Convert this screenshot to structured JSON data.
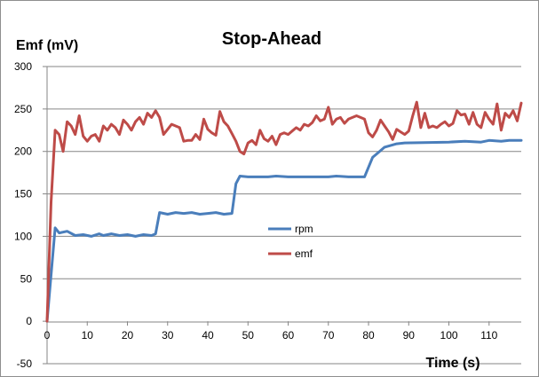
{
  "chart_data": {
    "type": "line",
    "title": "Stop-Ahead",
    "xlabel": "Time (s)",
    "ylabel": "Emf (mV)",
    "xlim": [
      0,
      118
    ],
    "ylim": [
      -50,
      300
    ],
    "x_ticks": [
      0,
      10,
      20,
      30,
      40,
      50,
      60,
      70,
      80,
      90,
      100,
      110
    ],
    "y_ticks": [
      -50,
      0,
      50,
      100,
      150,
      200,
      250,
      300
    ],
    "grid": "horizontal",
    "legend_position": "center",
    "series": [
      {
        "name": "rpm",
        "color": "#4a7ebb",
        "x": [
          0,
          2,
          3,
          5,
          7,
          9,
          11,
          13,
          14,
          16,
          18,
          20,
          22,
          24,
          26,
          27,
          28,
          30,
          32,
          34,
          36,
          38,
          40,
          42,
          44,
          46,
          47,
          48,
          50,
          55,
          57,
          60,
          70,
          72,
          75,
          79,
          81,
          82,
          84,
          87,
          89,
          100,
          104,
          108,
          110,
          113,
          115,
          118
        ],
        "values": [
          0,
          110,
          104,
          106,
          101,
          102,
          100,
          103,
          101,
          103,
          101,
          102,
          100,
          102,
          101,
          103,
          128,
          126,
          128,
          127,
          128,
          126,
          127,
          128,
          126,
          127,
          162,
          171,
          170,
          170,
          171,
          170,
          170,
          171,
          170,
          170,
          193,
          197,
          205,
          209,
          210,
          211,
          212,
          211,
          213,
          212,
          213,
          213
        ]
      },
      {
        "name": "emf",
        "color": "#be4b48",
        "x": [
          0,
          1,
          2,
          3,
          4,
          5,
          6,
          7,
          8,
          9,
          10,
          11,
          12,
          13,
          14,
          15,
          16,
          17,
          18,
          19,
          20,
          21,
          22,
          23,
          24,
          25,
          26,
          27,
          28,
          29,
          30,
          31,
          32,
          33,
          34,
          35,
          36,
          37,
          38,
          39,
          40,
          41,
          42,
          43,
          44,
          45,
          46,
          47,
          48,
          49,
          50,
          51,
          52,
          53,
          54,
          55,
          56,
          57,
          58,
          59,
          60,
          61,
          62,
          63,
          64,
          65,
          66,
          67,
          68,
          69,
          70,
          71,
          72,
          73,
          74,
          75,
          76,
          77,
          78,
          79,
          80,
          81,
          82,
          83,
          84,
          85,
          86,
          87,
          88,
          89,
          90,
          91,
          92,
          93,
          94,
          95,
          96,
          97,
          98,
          99,
          100,
          101,
          102,
          103,
          104,
          105,
          106,
          107,
          108,
          109,
          110,
          111,
          112,
          113,
          114,
          115,
          116,
          117,
          118
        ],
        "values": [
          0,
          140,
          225,
          220,
          200,
          235,
          230,
          220,
          242,
          218,
          212,
          218,
          220,
          212,
          230,
          225,
          232,
          228,
          220,
          237,
          232,
          225,
          235,
          240,
          232,
          245,
          240,
          248,
          240,
          220,
          226,
          232,
          230,
          228,
          212,
          213,
          213,
          220,
          214,
          238,
          226,
          222,
          219,
          247,
          235,
          230,
          221,
          212,
          200,
          197,
          210,
          213,
          208,
          225,
          215,
          212,
          218,
          208,
          220,
          222,
          220,
          224,
          228,
          225,
          232,
          230,
          234,
          242,
          236,
          238,
          252,
          232,
          238,
          240,
          233,
          238,
          240,
          242,
          240,
          238,
          222,
          217,
          225,
          237,
          230,
          223,
          214,
          226,
          223,
          220,
          224,
          242,
          258,
          228,
          245,
          228,
          230,
          228,
          232,
          235,
          230,
          233,
          248,
          243,
          244,
          232,
          246,
          232,
          228,
          246,
          238,
          232,
          256,
          225,
          245,
          240,
          248,
          236,
          257
        ]
      }
    ]
  }
}
